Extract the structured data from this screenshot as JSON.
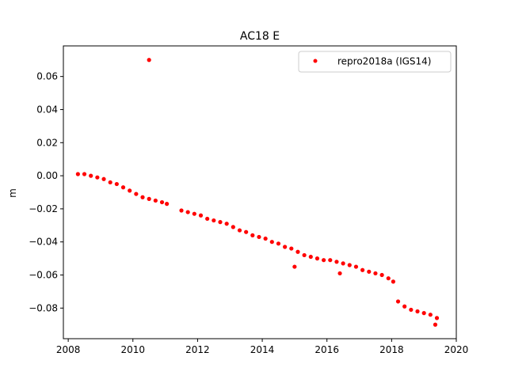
{
  "chart_data": {
    "type": "scatter",
    "title": "AC18 E",
    "xlabel": "",
    "ylabel": "m",
    "xlim": [
      2007.85,
      2020.0
    ],
    "ylim": [
      -0.0985,
      0.0785
    ],
    "xticks": [
      2008,
      2010,
      2012,
      2014,
      2016,
      2018,
      2020
    ],
    "xtick_labels": [
      "2008",
      "2010",
      "2012",
      "2014",
      "2016",
      "2018",
      "2020"
    ],
    "yticks": [
      -0.08,
      -0.06,
      -0.04,
      -0.02,
      0.0,
      0.02,
      0.04,
      0.06
    ],
    "ytick_labels": [
      "−0.08",
      "−0.06",
      "−0.04",
      "−0.02",
      "0.00",
      "0.02",
      "0.04",
      "0.06"
    ],
    "grid": false,
    "legend": {
      "position": "upper right"
    },
    "series": [
      {
        "name": "repro2018a (IGS14)",
        "color": "#ff0000",
        "marker": "circle",
        "x": [
          2008.3,
          2008.5,
          2008.7,
          2008.9,
          2009.1,
          2009.3,
          2009.5,
          2009.7,
          2009.9,
          2010.1,
          2010.3,
          2010.5,
          2010.7,
          2010.9,
          2011.05,
          2011.5,
          2011.7,
          2011.9,
          2012.1,
          2012.3,
          2012.5,
          2012.7,
          2012.9,
          2013.1,
          2013.3,
          2013.5,
          2013.7,
          2013.9,
          2014.1,
          2014.3,
          2014.5,
          2014.7,
          2014.9,
          2015.1,
          2015.3,
          2015.5,
          2015.7,
          2015.9,
          2016.1,
          2016.3,
          2016.5,
          2016.7,
          2016.9,
          2017.1,
          2017.3,
          2017.5,
          2017.7,
          2017.9,
          2018.05,
          2018.2,
          2018.4,
          2018.6,
          2018.8,
          2019.0,
          2019.2,
          2019.4,
          2010.5,
          2015.0,
          2016.4,
          2019.35
        ],
        "y": [
          0.001,
          0.001,
          0.0,
          -0.001,
          -0.002,
          -0.004,
          -0.005,
          -0.007,
          -0.009,
          -0.011,
          -0.013,
          -0.014,
          -0.015,
          -0.016,
          -0.017,
          -0.021,
          -0.022,
          -0.023,
          -0.024,
          -0.026,
          -0.027,
          -0.028,
          -0.029,
          -0.031,
          -0.033,
          -0.034,
          -0.036,
          -0.037,
          -0.038,
          -0.04,
          -0.041,
          -0.043,
          -0.044,
          -0.046,
          -0.048,
          -0.049,
          -0.05,
          -0.051,
          -0.051,
          -0.052,
          -0.053,
          -0.054,
          -0.055,
          -0.057,
          -0.058,
          -0.059,
          -0.06,
          -0.062,
          -0.064,
          -0.076,
          -0.079,
          -0.081,
          -0.082,
          -0.083,
          -0.084,
          -0.086,
          0.07,
          -0.055,
          -0.059,
          -0.09
        ]
      }
    ]
  }
}
